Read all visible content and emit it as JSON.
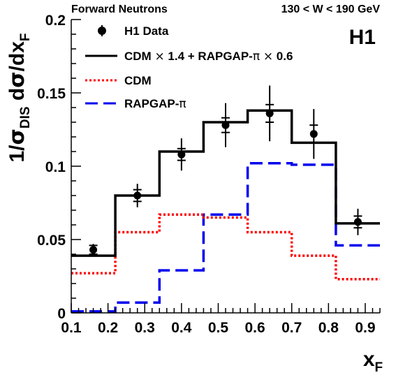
{
  "chart_data": {
    "type": "step",
    "header_left": "Forward Neutrons",
    "header_right": "130 < W < 190 GeV",
    "experiment_label": "H1",
    "ylabel": "1/σ_DIS dσ/dx_F",
    "xlabel": "x_F",
    "xlim": [
      0.1,
      0.94
    ],
    "ylim": [
      0,
      0.2
    ],
    "xticks": [
      "0.1",
      "0.2",
      "0.3",
      "0.4",
      "0.5",
      "0.6",
      "0.7",
      "0.8",
      "0.9"
    ],
    "yticks": [
      "0",
      "0.05",
      "0.1",
      "0.15",
      "0.2"
    ],
    "bin_edges": [
      0.1,
      0.22,
      0.34,
      0.46,
      0.58,
      0.7,
      0.82,
      0.94
    ],
    "series": [
      {
        "name": "H1 Data",
        "style": "points",
        "color": "#000000",
        "x": [
          0.16,
          0.28,
          0.4,
          0.52,
          0.64,
          0.76,
          0.88
        ],
        "y": [
          0.043,
          0.08,
          0.108,
          0.128,
          0.136,
          0.122,
          0.062
        ],
        "err_stat": [
          0.003,
          0.004,
          0.004,
          0.005,
          0.006,
          0.006,
          0.004
        ],
        "err_tot": [
          0.004,
          0.008,
          0.011,
          0.015,
          0.019,
          0.017,
          0.009
        ]
      },
      {
        "name": "CDM × 1.4 + RAPGAP-π × 0.6",
        "style": "solid",
        "color": "#000000",
        "values": [
          0.039,
          0.08,
          0.11,
          0.13,
          0.138,
          0.116,
          0.061
        ]
      },
      {
        "name": "CDM",
        "style": "dotted",
        "color": "#ff0000",
        "values": [
          0.027,
          0.055,
          0.067,
          0.065,
          0.055,
          0.039,
          0.023
        ]
      },
      {
        "name": "RAPGAP-π",
        "style": "dashed",
        "color": "#0000ee",
        "values": [
          0.001,
          0.007,
          0.029,
          0.067,
          0.102,
          0.101,
          0.046
        ]
      }
    ]
  }
}
